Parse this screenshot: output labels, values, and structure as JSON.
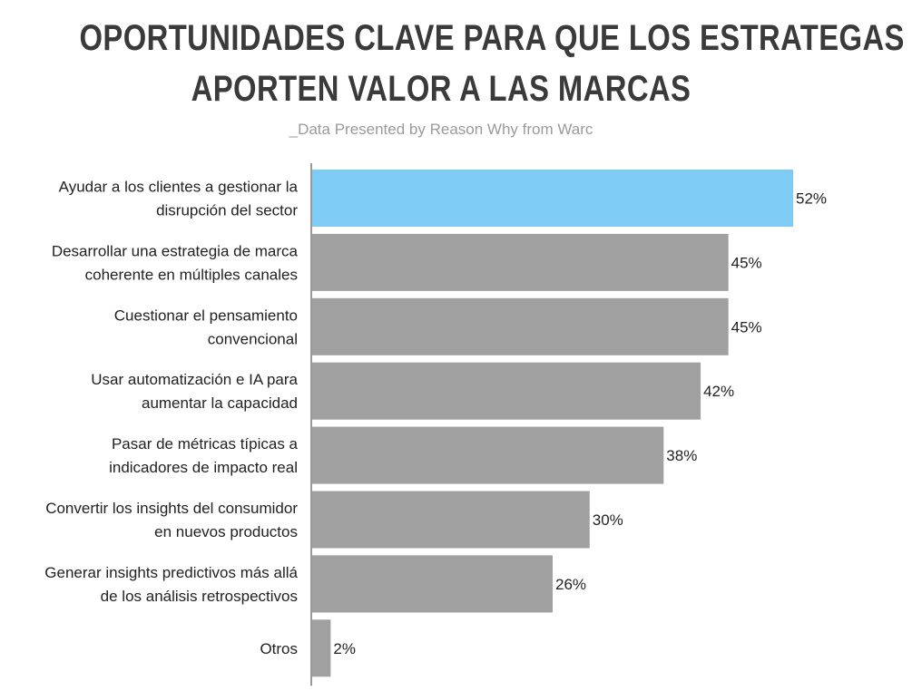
{
  "chart_data": {
    "type": "bar",
    "orientation": "horizontal",
    "title_lines": [
      "OPORTUNIDADES CLAVE PARA QUE LOS ESTRATEGAS",
      "APORTEN VALOR A LAS MARCAS"
    ],
    "subtitle": "_Data Presented by Reason Why from Warc",
    "categories": [
      [
        "Ayudar a los clientes a gestionar la",
        "disrupción del sector"
      ],
      [
        "Desarrollar una estrategia de marca",
        "coherente en múltiples canales"
      ],
      [
        "Cuestionar el pensamiento",
        "convencional"
      ],
      [
        "Usar automatización e IA para",
        "aumentar la capacidad"
      ],
      [
        "Pasar de métricas típicas a",
        "indicadores de impacto real"
      ],
      [
        "Convertir los insights del consumidor",
        "en nuevos productos"
      ],
      [
        "Generar insights predictivos más allá",
        "de los análisis retrospectivos"
      ],
      [
        "Otros"
      ]
    ],
    "values": [
      52,
      45,
      45,
      42,
      38,
      30,
      26,
      2
    ],
    "value_labels": [
      "52%",
      "45%",
      "45%",
      "42%",
      "38%",
      "30%",
      "26%",
      "2%"
    ],
    "highlight_index": 0,
    "xlim": [
      0,
      100
    ],
    "colors": {
      "highlight": "#7ecbf5",
      "default": "#a0a0a0",
      "axis": "#555555",
      "text": "#222222",
      "title": "#3a3a3a",
      "subtitle": "#9a9a9a"
    }
  }
}
